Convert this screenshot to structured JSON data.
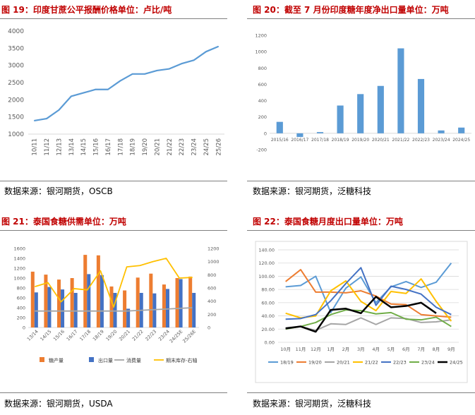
{
  "panels": [
    {
      "title": "图 19：印度甘蔗公平报酬价格单位：卢比/吨",
      "source": "数据来源：银河期货，OSCB"
    },
    {
      "title": "图 20：截至 7 月份印度糖年度净出口量单位：万吨",
      "source": "数据来源：银河期货，泛糖科技"
    },
    {
      "title": "图 21：泰国食糖供需单位：万吨",
      "source": "数据来源：银河期货，USDA"
    },
    {
      "title": "图 22：泰国食糖月度出口量单位：万吨",
      "source": "数据来源：银河期货，泛糖科技"
    }
  ],
  "chart_data": [
    {
      "type": "line",
      "title": "",
      "categories": [
        "10/11",
        "11/12",
        "12/13",
        "13/14",
        "14/15",
        "15/16",
        "16/17",
        "17/18",
        "18/19",
        "19/20",
        "20/21",
        "21/22",
        "22/23",
        "23/24",
        "24/25",
        "25/26"
      ],
      "series": [
        {
          "values": [
            1391,
            1451,
            1701,
            2100,
            2200,
            2300,
            2300,
            2550,
            2750,
            2750,
            2850,
            2900,
            3050,
            3150,
            3400,
            3550
          ],
          "color": "#5b9bd5"
        }
      ],
      "ylim": [
        1000,
        4000
      ],
      "yticks": [
        1000,
        1500,
        2000,
        2500,
        3000,
        3500,
        4000
      ],
      "grid": false
    },
    {
      "type": "bar",
      "title": "",
      "categories": [
        "2015/16",
        "2016/17",
        "2017/18",
        "2018/19",
        "2019/20",
        "2020/21",
        "2021/22",
        "2022/23",
        "2023/24",
        "2024/25"
      ],
      "series": [
        {
          "values": [
            140,
            -45,
            15,
            340,
            480,
            580,
            1040,
            665,
            35,
            70
          ],
          "color": "#5b9bd5"
        }
      ],
      "ylim": [
        -200,
        1200
      ],
      "yticks": [
        -200,
        0,
        200,
        400,
        600,
        800,
        1000,
        1200
      ],
      "grid": false
    },
    {
      "type": "bar",
      "title": "",
      "categories": [
        "13/14",
        "14/15",
        "15/16",
        "16/17",
        "17/18",
        "18/19",
        "19/20",
        "20/21",
        "21/22",
        "22/23",
        "23/24",
        "24/25E",
        "25/26E"
      ],
      "bars": [
        {
          "name": "糖产量",
          "color": "#ed7d31",
          "values": [
            1130,
            1070,
            970,
            1000,
            1470,
            1460,
            830,
            750,
            1010,
            1090,
            870,
            1000,
            1030
          ]
        },
        {
          "name": "出口量",
          "color": "#4472c4",
          "values": [
            710,
            820,
            770,
            700,
            1080,
            1060,
            700,
            380,
            700,
            690,
            780,
            980,
            700
          ]
        }
      ],
      "lines": [
        {
          "name": "消费量",
          "color": "#a5a5a5",
          "axis": "right",
          "values": [
            250,
            250,
            250,
            250,
            250,
            250,
            250,
            250,
            260,
            270,
            280,
            290,
            300
          ]
        },
        {
          "name": "期末库存-右轴",
          "color": "#ffc000",
          "axis": "right",
          "values": [
            620,
            680,
            390,
            590,
            570,
            860,
            310,
            920,
            940,
            1000,
            1050,
            750,
            760
          ]
        }
      ],
      "ylim_left": [
        0,
        1600
      ],
      "yticks_left": [
        0,
        200,
        400,
        600,
        800,
        1000,
        1200,
        1400,
        1600
      ],
      "ylim_right": [
        0,
        1200
      ],
      "yticks_right": [
        0,
        200,
        400,
        600,
        800,
        1000,
        1200
      ],
      "legend": "bottom",
      "grid": false
    },
    {
      "type": "line",
      "title": "",
      "categories": [
        "10月",
        "11月",
        "12月",
        "1月",
        "2月",
        "3月",
        "4月",
        "5月",
        "6月",
        "7月",
        "8月",
        "9月"
      ],
      "series": [
        {
          "name": "18/19",
          "color": "#5b9bd5",
          "width": 2,
          "values": [
            84,
            86,
            100,
            45,
            82,
            99,
            60,
            84,
            92,
            83,
            91,
            120
          ]
        },
        {
          "name": "19/20",
          "color": "#ed7d31",
          "width": 2,
          "values": [
            92,
            110,
            76,
            76,
            75,
            78,
            70,
            58,
            57,
            42,
            40,
            38
          ]
        },
        {
          "name": "20/21",
          "color": "#a5a5a5",
          "width": 2,
          "values": [
            22,
            24,
            18,
            28,
            27,
            37,
            27,
            37,
            36,
            30,
            31,
            34
          ]
        },
        {
          "name": "21/22",
          "color": "#ffc000",
          "width": 2,
          "values": [
            44,
            37,
            40,
            78,
            93,
            62,
            48,
            77,
            74,
            96,
            62,
            32
          ]
        },
        {
          "name": "22/23",
          "color": "#4472c4",
          "width": 2,
          "values": [
            35,
            36,
            42,
            63,
            89,
            113,
            56,
            85,
            80,
            73,
            53,
            42
          ]
        },
        {
          "name": "23/24",
          "color": "#70ad47",
          "width": 2,
          "values": [
            20,
            24,
            30,
            42,
            49,
            48,
            43,
            45,
            35,
            34,
            38,
            24
          ]
        },
        {
          "name": "24/25",
          "color": "#000000",
          "width": 2.5,
          "values": [
            21,
            24,
            16,
            49,
            51,
            44,
            69,
            53,
            55,
            60,
            44,
            null
          ]
        }
      ],
      "ylim": [
        0,
        140
      ],
      "yticks": [
        "0.00",
        "20.00",
        "40.00",
        "60.00",
        "80.00",
        "100.00",
        "120.00",
        "140.00"
      ],
      "legend": "bottom",
      "grid": true
    }
  ]
}
